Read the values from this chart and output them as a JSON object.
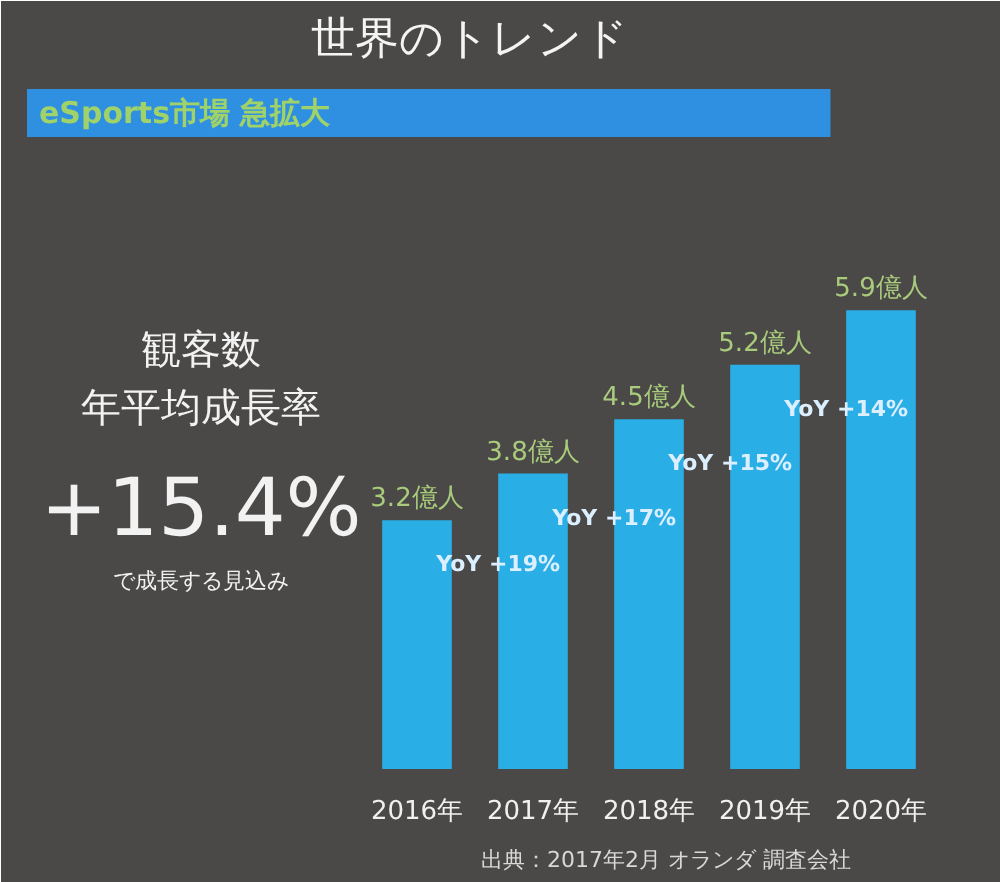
{
  "chart_data": {
    "type": "bar",
    "title": "世界のトレンド",
    "subtitle": "eSports市場 急拡大",
    "categories": [
      "2016年",
      "2017年",
      "2018年",
      "2019年",
      "2020年"
    ],
    "values": [
      3.2,
      3.8,
      4.5,
      5.2,
      5.9
    ],
    "color": "#2aaee6",
    "value_labels": [
      "3.2億人",
      "3.8億人",
      "4.5億人",
      "5.2億人",
      "5.9億人"
    ],
    "ylim": [
      0,
      8
    ],
    "tick_labels": "x",
    "annotations": [
      "YoY +19%",
      "YoY +17%",
      "YoY +15%",
      "YoY +14%",
      "観客数",
      "年平均成長率",
      "+15.4%",
      "で成長する見込み",
      "出典：2017年2月 オランダ 調査会社"
    ]
  }
}
